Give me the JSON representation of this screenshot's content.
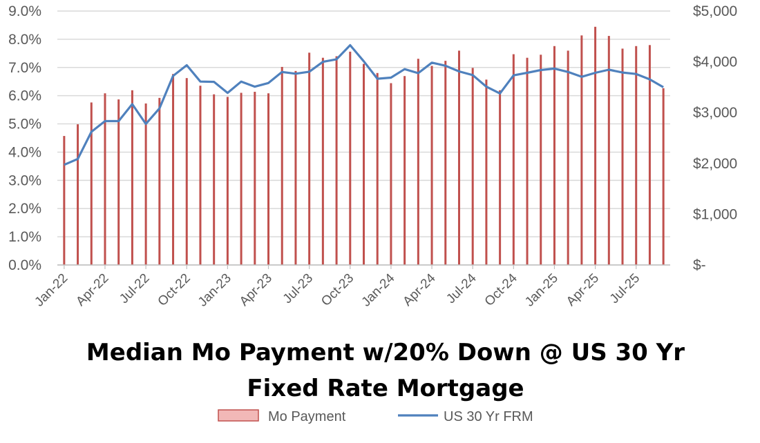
{
  "chart_data": {
    "type": "bar+line",
    "title_lines": [
      "Median Mo Payment w/20% Down @ US 30 Yr",
      "Fixed Rate Mortgage"
    ],
    "categories": [
      "Jan-22",
      "Feb-22",
      "Mar-22",
      "Apr-22",
      "May-22",
      "Jun-22",
      "Jul-22",
      "Aug-22",
      "Sep-22",
      "Oct-22",
      "Nov-22",
      "Dec-22",
      "Jan-23",
      "Feb-23",
      "Mar-23",
      "Apr-23",
      "May-23",
      "Jun-23",
      "Jul-23",
      "Aug-23",
      "Sep-23",
      "Oct-23",
      "Nov-23",
      "Dec-23",
      "Jan-24",
      "Feb-24",
      "Mar-24",
      "Apr-24",
      "May-24",
      "Jun-24",
      "Jul-24",
      "Aug-24",
      "Sep-24",
      "Oct-24",
      "Nov-24",
      "Dec-24",
      "Jan-25",
      "Feb-25",
      "Mar-25",
      "Apr-25",
      "May-25",
      "Jun-25",
      "Jul-25",
      "Aug-25",
      "Sep-25"
    ],
    "x_tick_labels": [
      "Jan-22",
      "Apr-22",
      "Jul-22",
      "Oct-22",
      "Jan-23",
      "Apr-23",
      "Jul-23",
      "Oct-23",
      "Jan-24",
      "Apr-24",
      "Jul-24",
      "Oct-24",
      "Jan-25",
      "Apr-25",
      "Jul-25"
    ],
    "y_left": {
      "ticks": [
        "0.0%",
        "1.0%",
        "2.0%",
        "3.0%",
        "4.0%",
        "5.0%",
        "6.0%",
        "7.0%",
        "8.0%",
        "9.0%"
      ],
      "range": [
        0,
        9
      ]
    },
    "y_right": {
      "ticks": [
        "$-",
        "$1,000",
        "$2,000",
        "$3,000",
        "$4,000",
        "$5,000"
      ],
      "range": [
        0,
        5000
      ]
    },
    "grid": "horizontal",
    "legend_position": "bottom",
    "series": [
      {
        "name": "Mo Payment",
        "type": "bar",
        "axis": "right",
        "color": "#C0504D",
        "values": [
          2540,
          2770,
          3200,
          3380,
          3260,
          3440,
          3180,
          3290,
          3760,
          3680,
          3530,
          3360,
          3310,
          3390,
          3410,
          3380,
          3900,
          3820,
          4180,
          4080,
          4110,
          4200,
          3960,
          3780,
          3580,
          3720,
          4060,
          3920,
          4020,
          4220,
          3880,
          3650,
          3440,
          4150,
          4080,
          4140,
          4310,
          4220,
          4520,
          4690,
          4510,
          4260,
          4310,
          4330,
          3480
        ]
      },
      {
        "name": "US 30 Yr FRM",
        "type": "line",
        "axis": "left",
        "color": "#4F81BD",
        "values": [
          3.55,
          3.76,
          4.72,
          5.1,
          5.1,
          5.7,
          5.0,
          5.55,
          6.7,
          7.08,
          6.5,
          6.49,
          6.1,
          6.5,
          6.32,
          6.45,
          6.84,
          6.78,
          6.85,
          7.2,
          7.29,
          7.79,
          7.22,
          6.6,
          6.64,
          6.94,
          6.8,
          7.17,
          7.06,
          6.86,
          6.73,
          6.32,
          6.08,
          6.72,
          6.81,
          6.91,
          6.96,
          6.84,
          6.67,
          6.81,
          6.92,
          6.82,
          6.77,
          6.58,
          6.3
        ]
      }
    ]
  }
}
